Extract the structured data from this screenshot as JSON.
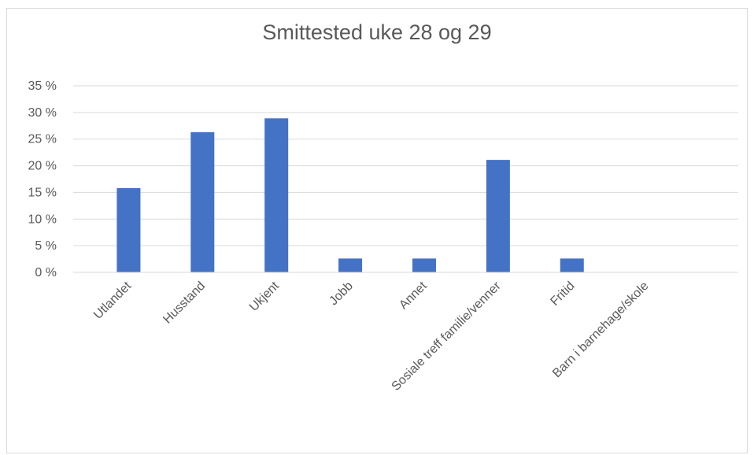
{
  "chart_data": {
    "type": "bar",
    "title": "Smittested uke 28 og 29",
    "categories": [
      "Utlandet",
      "Husstand",
      "Ukjent",
      "Jobb",
      "Annet",
      "Sosiale treff familie/venner",
      "Fritid",
      "Barn i barnehage/skole"
    ],
    "series": [
      {
        "values": [
          15.8,
          26.3,
          28.9,
          2.6,
          2.6,
          21.1,
          2.6,
          0
        ]
      }
    ],
    "ylim": [
      0,
      35
    ],
    "yticks": [
      0,
      5,
      10,
      15,
      20,
      25,
      30,
      35
    ],
    "ytick_labels": [
      "0 %",
      "5 %",
      "10 %",
      "15 %",
      "20 %",
      "25 %",
      "30 %",
      "35 %"
    ],
    "xlabel": "",
    "ylabel": "",
    "grid": true,
    "legend": "none",
    "bar_color": "#4472c4",
    "gridline_color": "#d9d9d9"
  }
}
